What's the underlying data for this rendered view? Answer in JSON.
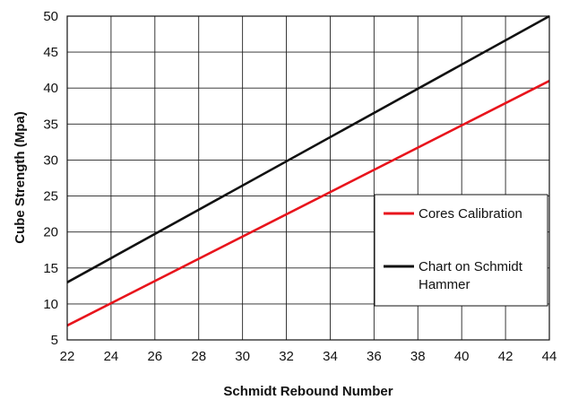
{
  "chart_data": {
    "type": "line",
    "title": "",
    "xlabel": "Schmidt Rebound Number",
    "ylabel": "Cube Strength (Mpa)",
    "xlim": [
      22,
      44
    ],
    "ylim": [
      5,
      50
    ],
    "x_ticks": [
      "22",
      "24",
      "26",
      "28",
      "30",
      "32",
      "34",
      "36",
      "38",
      "40",
      "42",
      "44"
    ],
    "y_ticks": [
      "5",
      "10",
      "15",
      "20",
      "25",
      "30",
      "35",
      "40",
      "45",
      "50"
    ],
    "grid": true,
    "legend_position": "right",
    "series": [
      {
        "name": "Cores Calibration",
        "color": "#e8141c",
        "x": [
          22,
          44
        ],
        "y": [
          7,
          41
        ]
      },
      {
        "name_lines": [
          "Chart on Schmidt",
          "Hammer"
        ],
        "color": "#111111",
        "x": [
          22,
          44
        ],
        "y": [
          13,
          50
        ]
      }
    ]
  }
}
